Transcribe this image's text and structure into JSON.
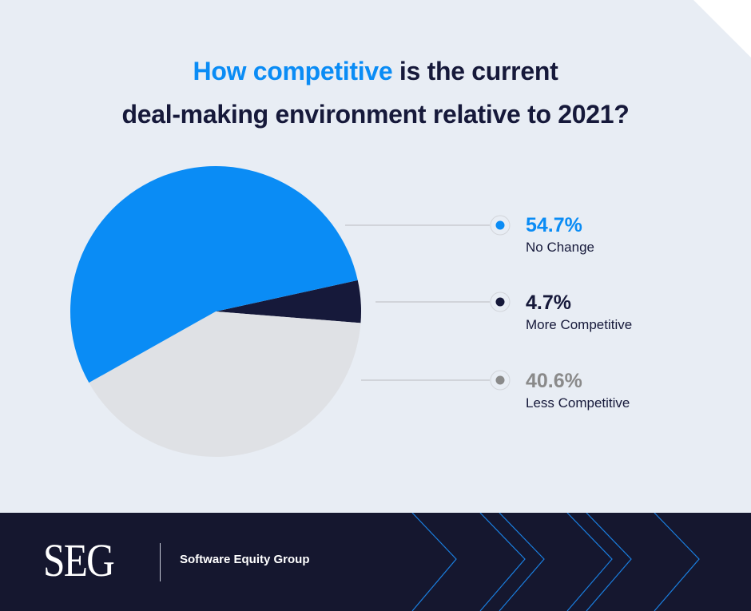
{
  "title": {
    "accent": "How competitive",
    "rest_line1": " is the current",
    "line2": "deal-making environment relative to 2021?"
  },
  "colors": {
    "accent": "#0a8cf5",
    "dark": "#16193a",
    "grey_slice": "#dfe1e5",
    "grey_text": "#8a8a8a",
    "background": "#e8edf4",
    "footer": "#15172f"
  },
  "chart_data": {
    "type": "pie",
    "slices": [
      {
        "label": "More Competitive",
        "value": 4.7,
        "display": "4.7%",
        "color": "#16193a",
        "text_color": "#16193a"
      },
      {
        "label": "Less Competitive",
        "value": 40.6,
        "display": "40.6%",
        "color": "#dfe1e5",
        "text_color": "#8a8a8a",
        "dot_color": "#8a8a8a"
      },
      {
        "label": "No Change",
        "value": 54.7,
        "display": "54.7%",
        "color": "#0a8cf5",
        "text_color": "#0a8cf5"
      }
    ],
    "legend_placement": "right"
  },
  "legend": [
    {
      "pct": "54.7%",
      "name": "No Change"
    },
    {
      "pct": "4.7%",
      "name": "More Competitive"
    },
    {
      "pct": "40.6%",
      "name": "Less Competitive"
    }
  ],
  "footer": {
    "logo": "SEG",
    "company": "Software Equity Group"
  }
}
